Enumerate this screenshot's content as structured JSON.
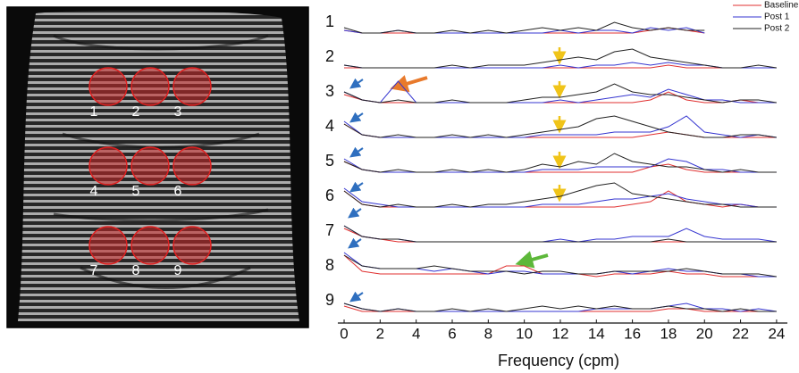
{
  "chart_data": {
    "type": "line",
    "xlabel": "Frequency (cpm)",
    "legend": "upper right",
    "x": [
      0,
      1,
      2,
      3,
      4,
      5,
      6,
      7,
      8,
      9,
      10,
      11,
      12,
      13,
      14,
      15,
      16,
      17,
      18,
      19,
      20,
      21,
      22,
      23,
      24
    ],
    "xlim": [
      -0.2,
      24.6
    ],
    "xticks": [
      0,
      2,
      4,
      6,
      8,
      10,
      12,
      14,
      16,
      18,
      20,
      22,
      24
    ],
    "panels": [
      {
        "label": "1",
        "series": [
          {
            "name": "Baseline",
            "color": "#e03030",
            "values": [
              2,
              1,
              1,
              1,
              1,
              1,
              1,
              1,
              1,
              1,
              1,
              1,
              1,
              1,
              1,
              1,
              1,
              2,
              3,
              2,
              1,
              null,
              null,
              null,
              null
            ]
          },
          {
            "name": "Post 1",
            "color": "#3535d0",
            "values": [
              2,
              1,
              1,
              2,
              1,
              1,
              1,
              1,
              1,
              1,
              1,
              1,
              2,
              1,
              2,
              2,
              1,
              3,
              2,
              3,
              1,
              null,
              null,
              null,
              null
            ]
          },
          {
            "name": "Post 2",
            "color": "#222222",
            "values": [
              3,
              1,
              1,
              2,
              1,
              1,
              2,
              1,
              2,
              1,
              2,
              3,
              2,
              3,
              2,
              5,
              3,
              2,
              3,
              2,
              2,
              null,
              null,
              null,
              null
            ]
          }
        ]
      },
      {
        "label": "2",
        "series": [
          {
            "name": "Baseline",
            "color": "#e03030",
            "values": [
              1,
              1,
              1,
              1,
              1,
              1,
              1,
              1,
              1,
              1,
              1,
              1,
              1,
              1,
              1,
              1,
              1,
              1,
              2,
              1,
              1,
              1,
              1,
              1,
              1
            ]
          },
          {
            "name": "Post 1",
            "color": "#3535d0",
            "values": [
              2,
              1,
              1,
              1,
              1,
              1,
              1,
              1,
              1,
              1,
              1,
              1,
              2,
              1,
              2,
              2,
              3,
              2,
              3,
              2,
              2,
              1,
              1,
              1,
              1
            ]
          },
          {
            "name": "Post 2",
            "color": "#222222",
            "values": [
              2,
              1,
              1,
              1,
              1,
              1,
              2,
              1,
              2,
              2,
              2,
              3,
              4,
              5,
              4,
              7,
              8,
              5,
              4,
              3,
              2,
              1,
              1,
              2,
              1
            ]
          }
        ]
      },
      {
        "label": "3",
        "series": [
          {
            "name": "Baseline",
            "color": "#e03030",
            "values": [
              4,
              2,
              1,
              1,
              1,
              1,
              1,
              1,
              1,
              1,
              1,
              1,
              1,
              1,
              1,
              1,
              1,
              2,
              5,
              2,
              1,
              1,
              2,
              1,
              1
            ]
          },
          {
            "name": "Post 1",
            "color": "#3535d0",
            "values": [
              5,
              2,
              1,
              9,
              1,
              1,
              1,
              1,
              1,
              1,
              1,
              1,
              2,
              1,
              2,
              3,
              4,
              3,
              6,
              4,
              2,
              2,
              1,
              1,
              1
            ]
          },
          {
            "name": "Post 2",
            "color": "#222222",
            "values": [
              5,
              2,
              1,
              2,
              1,
              1,
              2,
              1,
              1,
              1,
              2,
              3,
              3,
              4,
              5,
              8,
              5,
              4,
              4,
              3,
              2,
              1,
              2,
              2,
              1
            ]
          }
        ]
      },
      {
        "label": "4",
        "series": [
          {
            "name": "Baseline",
            "color": "#e03030",
            "values": [
              6,
              2,
              1,
              1,
              1,
              1,
              1,
              1,
              1,
              1,
              1,
              1,
              1,
              1,
              1,
              1,
              1,
              2,
              3,
              2,
              1,
              1,
              1,
              1,
              1
            ]
          },
          {
            "name": "Post 1",
            "color": "#3535d0",
            "values": [
              7,
              2,
              1,
              1,
              1,
              1,
              1,
              1,
              1,
              1,
              1,
              2,
              2,
              2,
              2,
              3,
              3,
              3,
              5,
              9,
              3,
              2,
              1,
              2,
              1
            ]
          },
          {
            "name": "Post 2",
            "color": "#222222",
            "values": [
              6,
              2,
              1,
              2,
              1,
              1,
              2,
              1,
              2,
              1,
              2,
              3,
              4,
              5,
              8,
              9,
              7,
              5,
              3,
              2,
              1,
              1,
              2,
              2,
              1
            ]
          }
        ]
      },
      {
        "label": "5",
        "series": [
          {
            "name": "Baseline",
            "color": "#e03030",
            "values": [
              5,
              2,
              1,
              1,
              1,
              1,
              1,
              1,
              1,
              1,
              1,
              1,
              1,
              1,
              1,
              1,
              1,
              3,
              4,
              2,
              1,
              1,
              1,
              1,
              1
            ]
          },
          {
            "name": "Post 1",
            "color": "#3535d0",
            "values": [
              6,
              2,
              1,
              1,
              1,
              1,
              1,
              1,
              1,
              1,
              1,
              2,
              2,
              2,
              3,
              3,
              3,
              3,
              6,
              5,
              2,
              2,
              1,
              1,
              1
            ]
          },
          {
            "name": "Post 2",
            "color": "#222222",
            "values": [
              5,
              2,
              1,
              2,
              1,
              1,
              2,
              1,
              2,
              1,
              2,
              4,
              3,
              5,
              4,
              8,
              5,
              4,
              3,
              3,
              2,
              1,
              2,
              1,
              1
            ]
          }
        ]
      },
      {
        "label": "6",
        "series": [
          {
            "name": "Baseline",
            "color": "#e03030",
            "values": [
              7,
              2,
              1,
              1,
              1,
              1,
              1,
              1,
              1,
              1,
              1,
              1,
              1,
              1,
              1,
              1,
              2,
              3,
              7,
              3,
              2,
              1,
              2,
              1,
              1
            ]
          },
          {
            "name": "Post 1",
            "color": "#3535d0",
            "values": [
              8,
              3,
              2,
              1,
              1,
              1,
              1,
              1,
              1,
              1,
              1,
              2,
              2,
              2,
              3,
              4,
              4,
              5,
              6,
              4,
              3,
              2,
              2,
              1,
              1
            ]
          },
          {
            "name": "Post 2",
            "color": "#222222",
            "values": [
              7,
              2,
              1,
              2,
              1,
              1,
              2,
              1,
              2,
              2,
              3,
              4,
              5,
              7,
              9,
              10,
              6,
              5,
              4,
              3,
              2,
              2,
              1,
              1,
              1
            ]
          }
        ]
      },
      {
        "label": "7",
        "series": [
          {
            "name": "Baseline",
            "color": "#e03030",
            "values": [
              6,
              3,
              2,
              1,
              1,
              1,
              1,
              1,
              1,
              1,
              1,
              1,
              1,
              1,
              1,
              1,
              1,
              1,
              1,
              1,
              1,
              1,
              1,
              1,
              1
            ]
          },
          {
            "name": "Post 1",
            "color": "#3535d0",
            "values": [
              7,
              3,
              2,
              2,
              1,
              1,
              1,
              1,
              1,
              1,
              1,
              1,
              2,
              1,
              2,
              2,
              3,
              3,
              3,
              6,
              3,
              2,
              2,
              2,
              1
            ]
          },
          {
            "name": "Post 2",
            "color": "#222222",
            "values": [
              7,
              3,
              2,
              2,
              1,
              1,
              1,
              1,
              1,
              1,
              1,
              1,
              1,
              1,
              1,
              1,
              1,
              1,
              2,
              1,
              1,
              1,
              1,
              1,
              1
            ]
          }
        ]
      },
      {
        "label": "8",
        "series": [
          {
            "name": "Baseline",
            "color": "#e03030",
            "values": [
              9,
              3,
              2,
              2,
              2,
              2,
              2,
              2,
              2,
              5,
              5,
              2,
              2,
              2,
              1,
              2,
              2,
              2,
              3,
              2,
              2,
              1,
              1,
              1,
              1
            ]
          },
          {
            "name": "Post 1",
            "color": "#3535d0",
            "values": [
              10,
              5,
              4,
              4,
              4,
              3,
              4,
              3,
              2,
              3,
              3,
              2,
              2,
              2,
              2,
              3,
              2,
              3,
              4,
              3,
              3,
              2,
              2,
              1,
              1
            ]
          },
          {
            "name": "Post 2",
            "color": "#222222",
            "values": [
              9,
              5,
              4,
              4,
              4,
              5,
              4,
              3,
              3,
              3,
              2,
              3,
              3,
              2,
              2,
              3,
              3,
              3,
              3,
              4,
              3,
              2,
              2,
              2,
              1
            ]
          }
        ]
      },
      {
        "label": "9",
        "series": [
          {
            "name": "Baseline",
            "color": "#e03030",
            "values": [
              3,
              1,
              1,
              1,
              1,
              1,
              1,
              1,
              1,
              1,
              1,
              1,
              1,
              1,
              1,
              1,
              1,
              1,
              2,
              2,
              1,
              1,
              1,
              1,
              1
            ]
          },
          {
            "name": "Post 1",
            "color": "#3535d0",
            "values": [
              4,
              2,
              1,
              2,
              1,
              1,
              1,
              1,
              1,
              1,
              1,
              1,
              1,
              1,
              2,
              2,
              2,
              2,
              3,
              4,
              2,
              2,
              1,
              2,
              1
            ]
          },
          {
            "name": "Post 2",
            "color": "#222222",
            "values": [
              4,
              2,
              1,
              2,
              1,
              1,
              2,
              1,
              2,
              1,
              2,
              3,
              2,
              3,
              2,
              3,
              2,
              2,
              3,
              2,
              2,
              1,
              2,
              1,
              1
            ]
          }
        ]
      }
    ]
  }
}
